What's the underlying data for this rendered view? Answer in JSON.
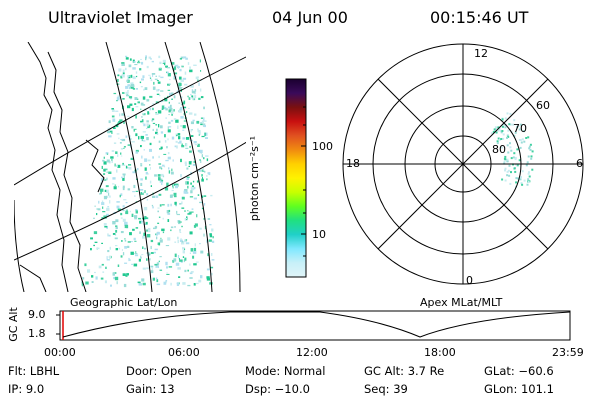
{
  "header": {
    "instrument": "Ultraviolet Imager",
    "date": "04 Jun 00",
    "time": "00:15:46 UT"
  },
  "colorbar": {
    "unit_label": "photon cm⁻²s⁻¹",
    "tick_labels": [
      "100",
      "10"
    ],
    "stops": [
      "#1a0030",
      "#3a0a5a",
      "#7a1010",
      "#c81010",
      "#e05020",
      "#f08a10",
      "#ffd000",
      "#fff200",
      "#c8ff00",
      "#60ff20",
      "#20e080",
      "#20d0c8",
      "#80e8ff",
      "#c8f0f8",
      "#e0f4f8"
    ]
  },
  "map_panel": {
    "caption": "Geographic Lat/Lon"
  },
  "polar_panel": {
    "caption": "Apex MLat/MLT",
    "mlt_labels": {
      "top": "12",
      "left": "18",
      "right": "6",
      "bottom": "0"
    },
    "lat_labels": [
      "60",
      "70",
      "80"
    ]
  },
  "altitude_plot": {
    "ylabel": "GC Alt",
    "yticks": [
      "9.0",
      "1.8"
    ],
    "xticks": [
      "00:00",
      "06:00",
      "12:00",
      "18:00",
      "23:59"
    ]
  },
  "info": {
    "flt": "Flt: LBHL",
    "ip": "IP:  9.0",
    "door": "Door: Open",
    "gain": "Gain: 13",
    "mode": "Mode: Normal",
    "dsp": "Dsp:  −10.0",
    "gc_alt": "GC Alt: 3.7 Re",
    "seq": "Seq: 39",
    "glat": "GLat: −60.6",
    "glon": "GLon: 101.1"
  }
}
